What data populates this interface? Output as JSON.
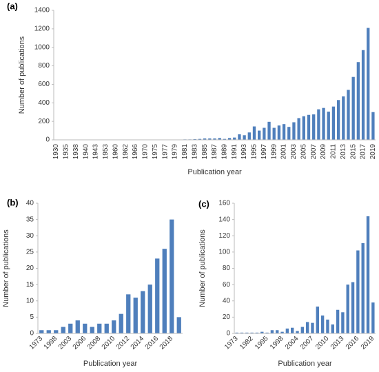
{
  "chart_data": [
    {
      "type": "bar",
      "panel_label": "(a)",
      "x_label": "Publication year",
      "y_label": "Number of publications",
      "color": "#4f7fbc",
      "categories": [
        1930,
        null,
        1935,
        null,
        1938,
        null,
        1940,
        null,
        1943,
        null,
        1953,
        null,
        1960,
        null,
        1962,
        null,
        1966,
        null,
        1970,
        null,
        1975,
        null,
        1977,
        null,
        1979,
        null,
        1981,
        null,
        1983,
        null,
        1985,
        null,
        1987,
        null,
        1989,
        null,
        1991,
        null,
        1993,
        null,
        1995,
        null,
        1997,
        null,
        1999,
        null,
        2001,
        null,
        2003,
        null,
        2005,
        null,
        2007,
        null,
        2009,
        null,
        2011,
        null,
        2013,
        null,
        2015,
        null,
        2017,
        null,
        2019
      ],
      "values": [
        1,
        1,
        1,
        1,
        1,
        1,
        1,
        1,
        1,
        1,
        1,
        1,
        1,
        1,
        1,
        1,
        1,
        1,
        1,
        1,
        2,
        1,
        2,
        1,
        2,
        2,
        5,
        5,
        8,
        10,
        15,
        15,
        15,
        20,
        10,
        20,
        25,
        60,
        50,
        80,
        145,
        100,
        130,
        195,
        130,
        155,
        170,
        140,
        190,
        235,
        255,
        270,
        275,
        330,
        345,
        305,
        360,
        430,
        470,
        540,
        680,
        840,
        970,
        1210,
        300
      ],
      "ylim": [
        0,
        1400
      ],
      "yticks": [
        0,
        200,
        400,
        600,
        800,
        1000,
        1200,
        1400
      ]
    },
    {
      "type": "bar",
      "panel_label": "(b)",
      "x_label": "Publication year",
      "y_label": "Number of publications",
      "color": "#4f7fbc",
      "categories": [
        1973,
        null,
        1998,
        null,
        2003,
        null,
        2006,
        null,
        2008,
        null,
        2010,
        null,
        2012,
        null,
        2014,
        null,
        2016,
        null,
        2018,
        null
      ],
      "values": [
        1,
        1,
        1,
        2,
        3,
        4,
        3,
        2,
        3,
        3,
        4,
        6,
        12,
        11,
        13,
        15,
        23,
        26,
        35,
        5
      ],
      "ylim": [
        0,
        40
      ],
      "yticks": [
        0,
        5,
        10,
        15,
        20,
        25,
        30,
        35,
        40
      ]
    },
    {
      "type": "bar",
      "panel_label": "(c)",
      "x_label": "Publication year",
      "y_label": "Number of publications",
      "color": "#4f7fbc",
      "categories": [
        1973,
        null,
        null,
        1982,
        null,
        null,
        1995,
        null,
        null,
        1998,
        null,
        null,
        2004,
        null,
        null,
        2007,
        null,
        null,
        2010,
        null,
        null,
        2013,
        null,
        null,
        2016,
        null,
        null,
        2019
      ],
      "values": [
        1,
        1,
        1,
        1,
        1,
        2,
        1,
        4,
        4,
        2,
        6,
        7,
        3,
        8,
        14,
        13,
        33,
        22,
        17,
        11,
        29,
        26,
        60,
        63,
        102,
        111,
        144,
        38
      ],
      "ylim": [
        0,
        160
      ],
      "yticks": [
        0,
        20,
        40,
        60,
        80,
        100,
        120,
        140,
        160
      ]
    }
  ]
}
